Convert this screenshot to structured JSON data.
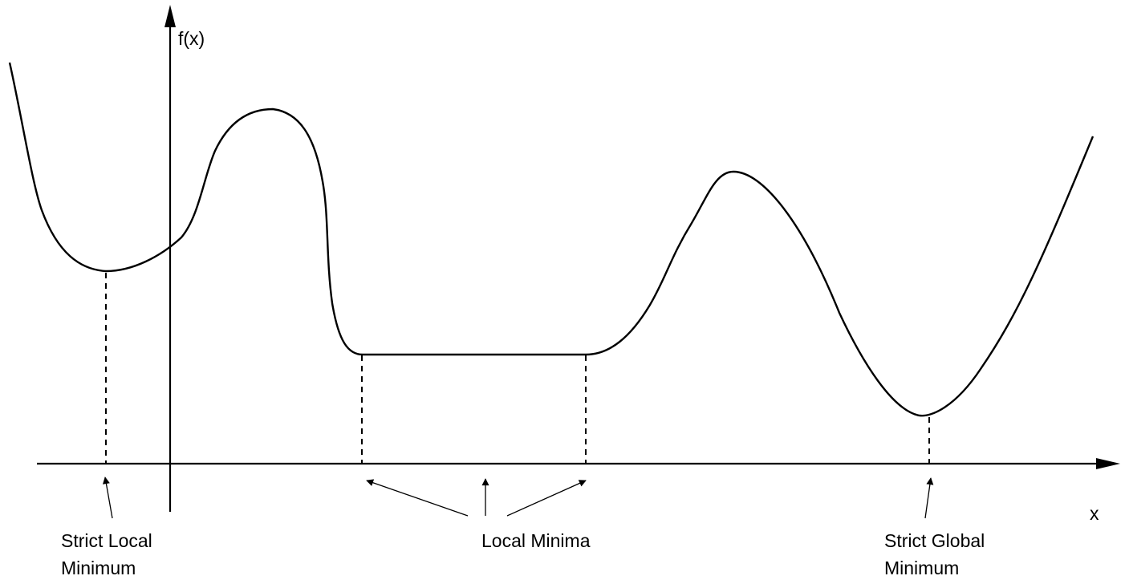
{
  "axes": {
    "y_label": "f(x)",
    "x_label": "x"
  },
  "annotations": {
    "strict_local_minimum": {
      "line1": "Strict Local",
      "line2": "Minimum"
    },
    "local_minima": {
      "line1": "Local Minima"
    },
    "strict_global_minimum": {
      "line1": "Strict Global",
      "line2": "Minimum"
    }
  },
  "colors": {
    "stroke": "#000000",
    "background": "#ffffff"
  }
}
